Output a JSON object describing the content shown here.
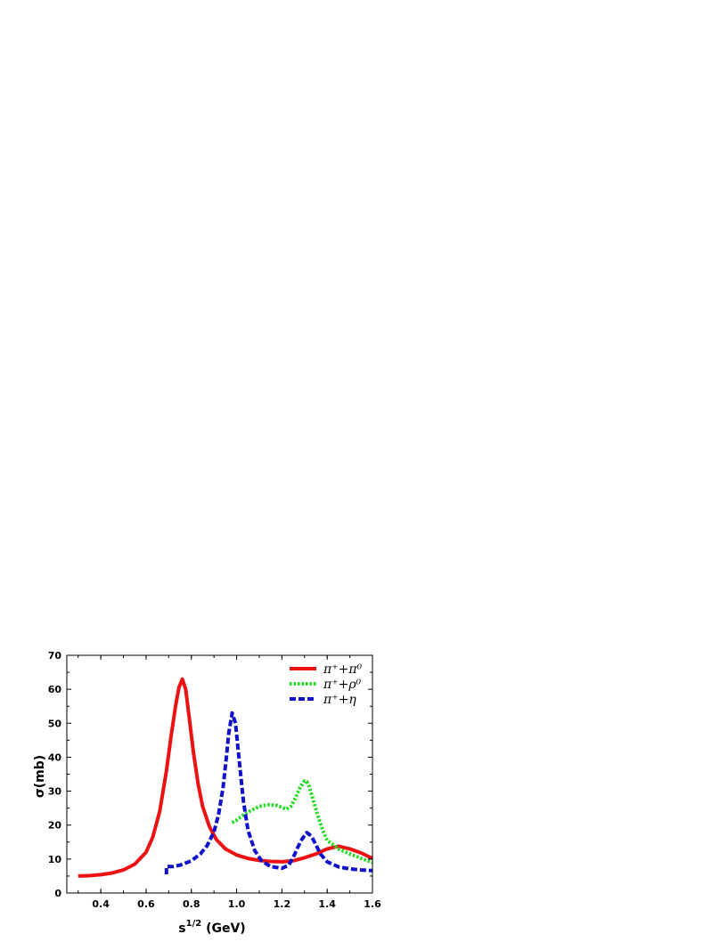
{
  "chart_data": {
    "type": "line",
    "xlabel": "s^1/2 (GeV)",
    "ylabel": "σ(mb)",
    "xlim": [
      0.25,
      1.6
    ],
    "ylim": [
      0,
      70
    ],
    "xticks": [
      "0.4",
      "0.6",
      "0.8",
      "1.0",
      "1.2",
      "1.4",
      "1.6"
    ],
    "yticks": [
      "0",
      "10",
      "20",
      "30",
      "40",
      "50",
      "60",
      "70"
    ],
    "grid": false,
    "legend_position": "top-right",
    "series": [
      {
        "name": "π⁺+π⁰",
        "color": "#ee1111",
        "style": "solid",
        "x": [
          0.3,
          0.35,
          0.4,
          0.45,
          0.5,
          0.55,
          0.6,
          0.63,
          0.66,
          0.69,
          0.71,
          0.73,
          0.745,
          0.76,
          0.775,
          0.79,
          0.81,
          0.83,
          0.85,
          0.88,
          0.91,
          0.95,
          1.0,
          1.05,
          1.1,
          1.15,
          1.2,
          1.25,
          1.3,
          1.35,
          1.4,
          1.45,
          1.5,
          1.55,
          1.6
        ],
        "y": [
          5,
          5.1,
          5.4,
          5.9,
          6.8,
          8.5,
          12,
          16.5,
          24,
          36,
          46,
          55,
          60.5,
          63,
          60,
          52,
          41,
          32,
          25.5,
          19.5,
          15.8,
          13,
          11.2,
          10.2,
          9.6,
          9.3,
          9.2,
          9.5,
          10.4,
          11.5,
          13,
          13.8,
          13,
          11.8,
          10.2
        ]
      },
      {
        "name": "π⁺+ρ⁰",
        "color": "#22dd22",
        "style": "dotted",
        "x": [
          0.98,
          1.0,
          1.03,
          1.06,
          1.1,
          1.14,
          1.18,
          1.2,
          1.22,
          1.24,
          1.26,
          1.28,
          1.3,
          1.31,
          1.32,
          1.34,
          1.36,
          1.38,
          1.4,
          1.45,
          1.5,
          1.55,
          1.6
        ],
        "y": [
          20.7,
          21.5,
          23,
          24.2,
          25.5,
          26,
          25.8,
          25.2,
          24.7,
          25.5,
          28,
          31,
          33,
          32.8,
          31.5,
          27,
          22.5,
          18.5,
          15.5,
          13,
          11.5,
          10.2,
          9
        ]
      },
      {
        "name": "π⁺+η",
        "color": "#1111cc",
        "style": "dashed",
        "x": [
          0.69,
          0.69,
          0.72,
          0.75,
          0.8,
          0.84,
          0.87,
          0.9,
          0.92,
          0.94,
          0.955,
          0.965,
          0.98,
          0.995,
          1.01,
          1.03,
          1.05,
          1.08,
          1.11,
          1.15,
          1.2,
          1.23,
          1.25,
          1.27,
          1.29,
          1.31,
          1.33,
          1.35,
          1.37,
          1.4,
          1.45,
          1.5,
          1.55,
          1.6
        ],
        "y": [
          5.5,
          7.8,
          7.8,
          8.2,
          9.5,
          11.5,
          14,
          18,
          23,
          31,
          40,
          47,
          53,
          50,
          40,
          27,
          18.5,
          12.5,
          9.5,
          7.8,
          7.3,
          8.2,
          10.5,
          13.5,
          16,
          17.8,
          16.8,
          14.2,
          11.5,
          9.2,
          7.7,
          7.1,
          6.8,
          6.6
        ]
      }
    ]
  }
}
